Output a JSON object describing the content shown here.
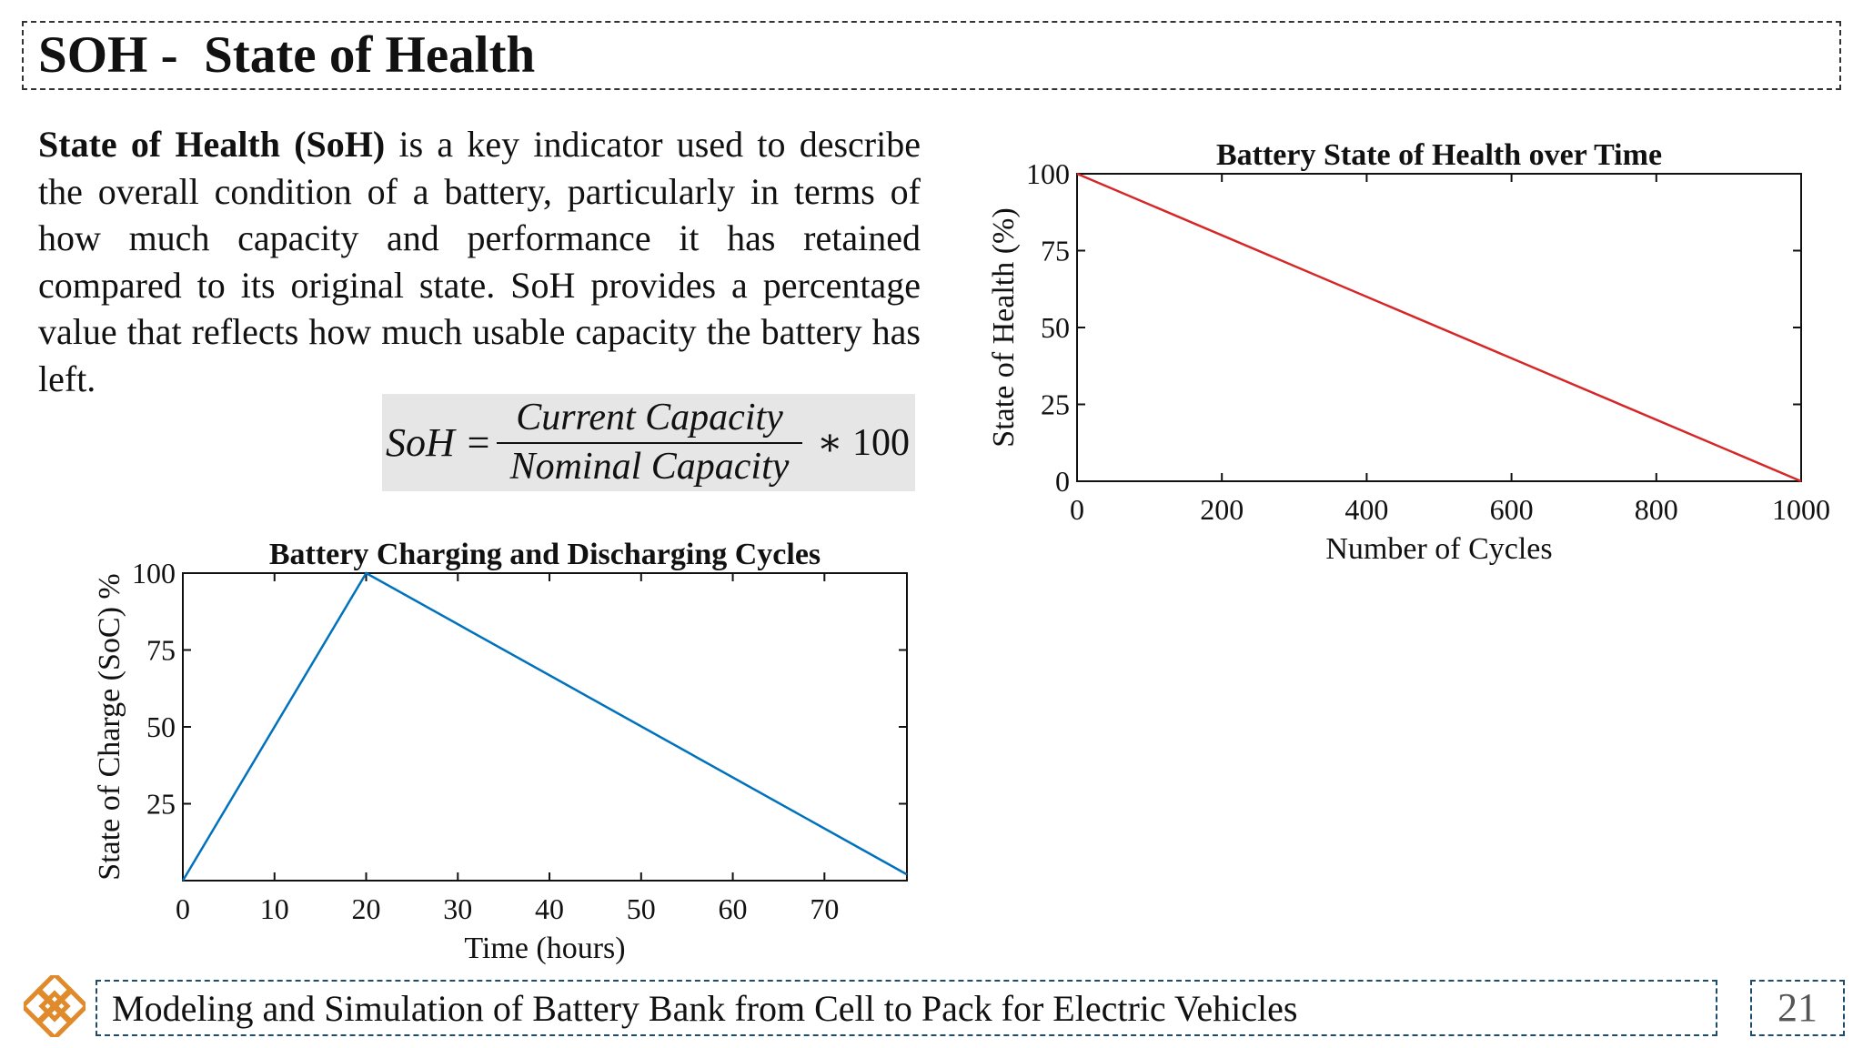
{
  "slide": {
    "title": "SOH -  State of Health",
    "intro": {
      "term": "State of Health (SoH)",
      "body": " is a key indicator used to describe the overall condition of a battery, particularly in terms of how much capacity and performance it has retained compared to its original state. SoH provides a percentage value that reflects how much usable capacity the battery has left."
    },
    "formula": {
      "lhs": "SoH =",
      "numerator": "Current Capacity",
      "denominator": "Nominal Capacity",
      "rhs": "∗ 100"
    },
    "footer": "Modeling and Simulation of Battery Bank from Cell to Pack for Electric Vehicles",
    "page_number": "21",
    "logo_icon": "endless-knot-icon",
    "colors": {
      "soh_line": "#d62728",
      "soc_line": "#0072bd",
      "logo": "#e08a2c",
      "formula_bg": "#e6e6e6"
    }
  },
  "chart_data": [
    {
      "type": "line",
      "title": "Battery State of Health over Time",
      "xlabel": "Number of Cycles",
      "ylabel": "State of Health (%)",
      "xlim": [
        0,
        1000
      ],
      "ylim": [
        0,
        100
      ],
      "xticks": [
        0,
        200,
        400,
        600,
        800,
        1000
      ],
      "yticks": [
        0,
        25,
        50,
        75,
        100
      ],
      "grid": false,
      "series": [
        {
          "color": "#d62728",
          "x": [
            0,
            1000
          ],
          "y": [
            100,
            0
          ]
        }
      ]
    },
    {
      "type": "line",
      "title": "Battery Charging and Discharging Cycles",
      "xlabel": "Time (hours)",
      "ylabel": "State of Charge (SoC) %",
      "xlim": [
        0,
        79
      ],
      "ylim": [
        0,
        100
      ],
      "xticks": [
        0,
        10,
        20,
        30,
        40,
        50,
        60,
        70
      ],
      "yticks": [
        25,
        50,
        75,
        100
      ],
      "grid": false,
      "series": [
        {
          "color": "#0072bd",
          "x": [
            0,
            20,
            79
          ],
          "y": [
            0,
            100,
            2
          ]
        }
      ]
    }
  ]
}
